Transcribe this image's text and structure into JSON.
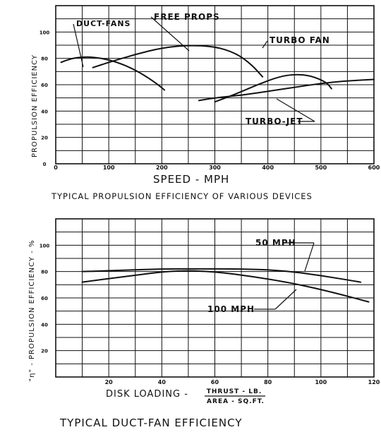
{
  "chart_data": [
    {
      "type": "line",
      "title": "TYPICAL PROPULSION EFFICIENCY OF VARIOUS DEVICES",
      "xlabel": "SPEED - MPH",
      "ylabel": "PROPULSION EFFICIENCY",
      "xlim": [
        0,
        600
      ],
      "ylim": [
        0,
        120
      ],
      "x_ticks": [
        "0",
        "100",
        "200",
        "300",
        "400",
        "500",
        "600"
      ],
      "y_ticks": [
        "0",
        "20",
        "40",
        "60",
        "80",
        "100"
      ],
      "grid": true,
      "series": [
        {
          "name": "DUCT-FANS",
          "x": [
            10,
            30,
            50,
            70,
            100,
            130,
            160,
            190,
            205
          ],
          "y": [
            77,
            80,
            81,
            81,
            79,
            75,
            69,
            61,
            56
          ]
        },
        {
          "name": "FREE PROPS",
          "x": [
            70,
            100,
            150,
            200,
            250,
            300,
            340,
            370,
            390
          ],
          "y": [
            73,
            77,
            83,
            88,
            90,
            89,
            84,
            75,
            66
          ]
        },
        {
          "name": "TURBO FAN",
          "x": [
            300,
            340,
            380,
            420,
            450,
            480,
            510,
            520
          ],
          "y": [
            47,
            53,
            60,
            66,
            68,
            67,
            62,
            57
          ]
        },
        {
          "name": "TURBO-JET",
          "x": [
            270,
            300,
            350,
            400,
            450,
            500,
            550,
            600
          ],
          "y": [
            48,
            50,
            52,
            55,
            58,
            61,
            63,
            64
          ]
        }
      ]
    },
    {
      "type": "line",
      "title": "TYPICAL DUCT-FAN EFFICIENCY",
      "xlabel": "DISK LOADING - THRUST - LB. / AREA - SQ.FT.",
      "xlabel_prefix": "DISK LOADING -",
      "xlabel_numerator": "THRUST - LB.",
      "xlabel_denominator": "AREA - SQ.FT.",
      "ylabel": "\"η\" - PROPULSION EFFICIENCY - %",
      "xlim": [
        0,
        120
      ],
      "ylim": [
        0,
        120
      ],
      "x_ticks": [
        "20",
        "40",
        "60",
        "80",
        "100",
        "120"
      ],
      "y_ticks": [
        "20",
        "40",
        "60",
        "80",
        "100"
      ],
      "grid": true,
      "series": [
        {
          "name": "50 MPH",
          "x": [
            10,
            25,
            40,
            55,
            70,
            85,
            100,
            115
          ],
          "y": [
            80,
            81,
            82,
            82,
            82,
            81,
            77,
            72
          ]
        },
        {
          "name": "100 MPH",
          "x": [
            10,
            25,
            45,
            60,
            75,
            90,
            105,
            118
          ],
          "y": [
            72,
            76,
            81,
            80,
            76,
            71,
            64,
            57
          ]
        }
      ]
    }
  ]
}
